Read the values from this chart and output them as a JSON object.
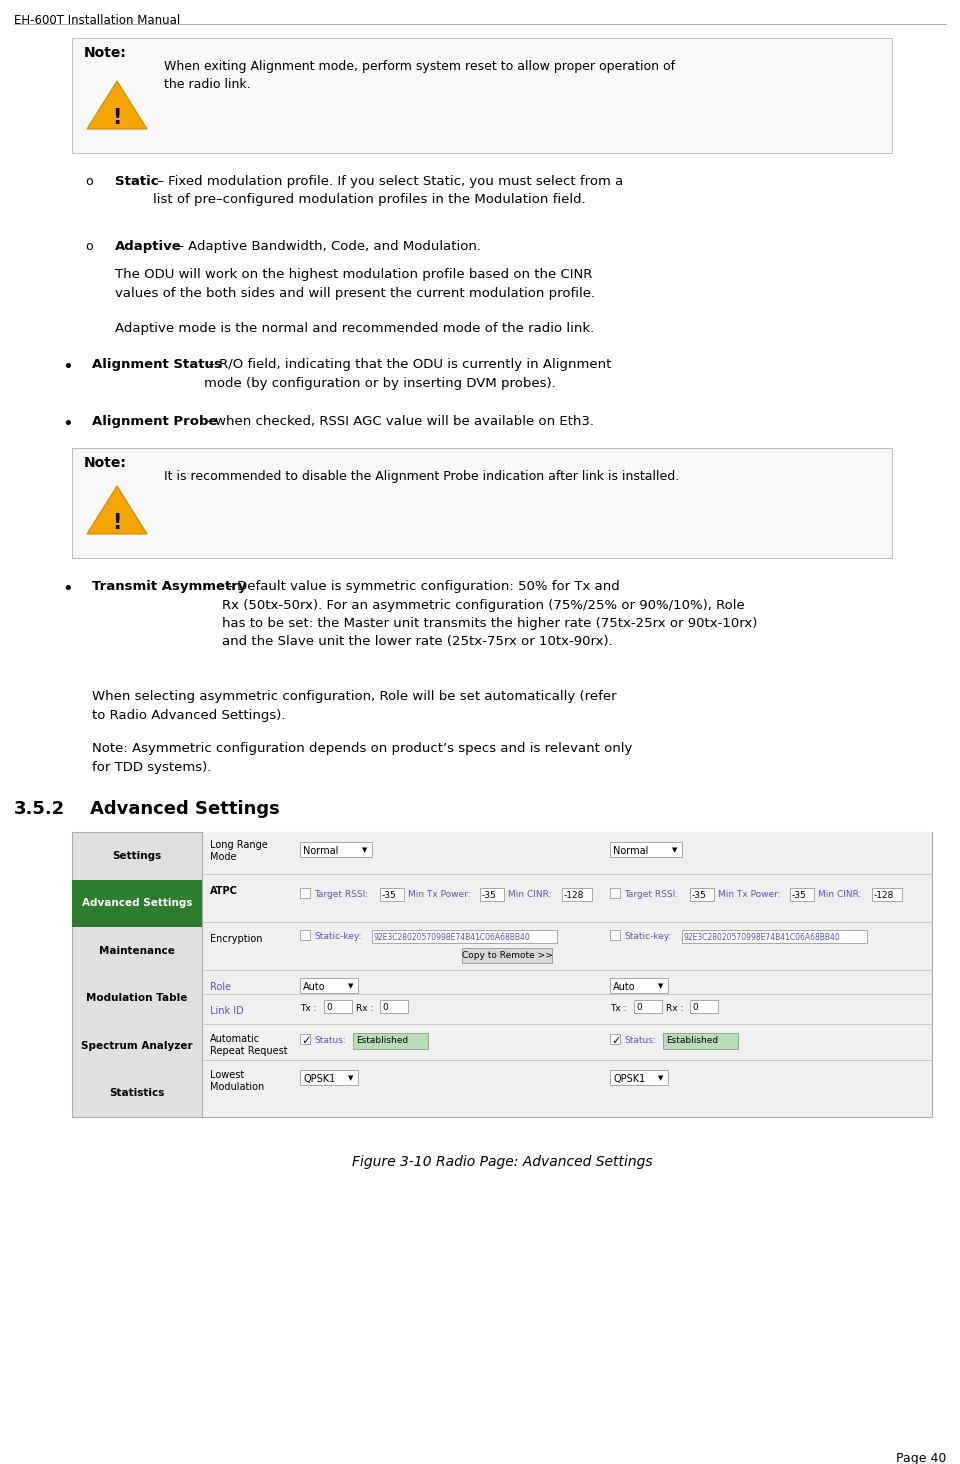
{
  "page_header": "EH-600T Installation Manual",
  "page_number": "Page 40",
  "bg_color": "#ffffff",
  "note1_label": "Note:",
  "note1_text": "When exiting Alignment mode, perform system reset to allow proper operation of\nthe radio link.",
  "b1_bold": "Static",
  "b1_rest": " – Fixed modulation profile. If you select Static, you must select from a\nlist of pre–configured modulation profiles in the Modulation field.",
  "b2_bold": "Adaptive",
  "b2_rest": " – Adaptive Bandwidth, Code, and Modulation.",
  "b2_sub1": "The ODU will work on the highest modulation profile based on the CINR\nvalues of the both sides and will present the current modulation profile.",
  "b2_sub2": "Adaptive mode is the normal and recommended mode of the radio link.",
  "b3_bold": "Alignment Status",
  "b3_rest": " – R/O field, indicating that the ODU is currently in Alignment\nmode (by configuration or by inserting DVM probes).",
  "b4_bold": "Alignment Probe",
  "b4_rest": " – when checked, RSSI AGC value will be available on Eth3.",
  "note2_label": "Note:",
  "note2_text": "It is recommended to disable the Alignment Probe indication after link is installed.",
  "b5_bold": "Transmit Asymmetry",
  "b5_rest": " – Default value is symmetric configuration: 50% for Tx and\nRx (50tx-50rx). For an asymmetric configuration (75%/25% or 90%/10%), Role\nhas to be set: the Master unit transmits the higher rate (75tx-25rx or 90tx-10rx)\nand the Slave unit the lower rate (25tx-75rx or 10tx-90rx).",
  "b5_sub1": "When selecting asymmetric configuration, Role will be set automatically (refer\nto Radio Advanced Settings).",
  "b5_sub2": "Note: Asymmetric configuration depends on product’s specs and is relevant only\nfor TDD systems).",
  "section_num": "3.5.2",
  "section_title": "Advanced Settings",
  "figure_caption": "Figure 3-10 Radio Page: Advanced Settings",
  "sidebar_items": [
    "Settings",
    "Advanced Settings",
    "Maintenance",
    "Modulation Table",
    "Spectrum Analyzer",
    "Statistics"
  ],
  "sidebar_active": "Advanced Settings",
  "sidebar_active_bg": "#2e7d2e",
  "enc_key": "92E3C28020570998E74B41C06A68BB40"
}
